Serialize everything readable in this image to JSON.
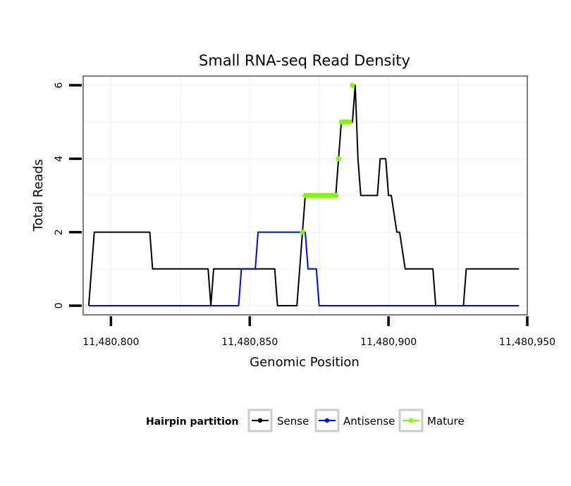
{
  "chart_data": {
    "type": "line",
    "title": "Small RNA-seq Read Density",
    "xlabel": "Genomic Position",
    "ylabel": "Total Reads",
    "xlim": [
      11480790,
      11480950
    ],
    "ylim": [
      -0.25,
      6.25
    ],
    "x_ticks": [
      11480800,
      11480850,
      11480900,
      11480950
    ],
    "x_tick_labels": [
      "11,480,800",
      "11,480,850",
      "11,480,900",
      "11,480,950"
    ],
    "y_ticks": [
      0,
      2,
      4,
      6
    ],
    "y_tick_labels": [
      "0",
      "2",
      "4",
      "6"
    ],
    "grid": true,
    "legend": {
      "title": "Hairpin partition",
      "position": "bottom",
      "entries": [
        {
          "key": "sense",
          "label": "Sense",
          "color": "#000000"
        },
        {
          "key": "antisense",
          "label": "Antisense",
          "color": "#0000ff"
        },
        {
          "key": "mature",
          "label": "Mature",
          "color": "#7cfc00"
        }
      ]
    },
    "series": [
      {
        "name": "Sense",
        "key": "sense",
        "color": "#000000",
        "x": [
          11480792,
          11480794,
          11480795,
          11480814,
          11480815,
          11480835,
          11480836,
          11480837,
          11480859,
          11480860,
          11480867,
          11480869,
          11480870,
          11480881,
          11480882,
          11480883,
          11480887,
          11480888,
          11480889,
          11480890,
          11480896,
          11480897,
          11480899,
          11480900,
          11480901,
          11480903,
          11480904,
          11480906,
          11480916,
          11480917,
          11480927,
          11480928,
          11480947
        ],
        "y": [
          0,
          2,
          2,
          2,
          1,
          1,
          0,
          1,
          1,
          0,
          0,
          2,
          3,
          3,
          4,
          5,
          5,
          6,
          4,
          3,
          3,
          4,
          4,
          3,
          3,
          2,
          2,
          1,
          1,
          0,
          0,
          1,
          1
        ]
      },
      {
        "name": "Antisense",
        "key": "antisense",
        "color": "#0000ff",
        "x": [
          11480792,
          11480846,
          11480847,
          11480852,
          11480853,
          11480864,
          11480865,
          11480870,
          11480871,
          11480874,
          11480875,
          11480947
        ],
        "y": [
          0,
          0,
          1,
          1,
          2,
          2,
          2,
          2,
          1,
          1,
          0,
          0
        ]
      },
      {
        "name": "Mature",
        "key": "mature",
        "color": "#7cfc00",
        "x": [
          11480869,
          11480870,
          11480871,
          11480872,
          11480873,
          11480874,
          11480875,
          11480876,
          11480877,
          11480878,
          11480879,
          11480880,
          11480881,
          11480882,
          11480883,
          11480884,
          11480885,
          11480886,
          11480887
        ],
        "y": [
          2,
          3,
          3,
          3,
          3,
          3,
          3,
          3,
          3,
          3,
          3,
          3,
          3,
          4,
          5,
          5,
          5,
          5,
          6
        ]
      }
    ]
  }
}
